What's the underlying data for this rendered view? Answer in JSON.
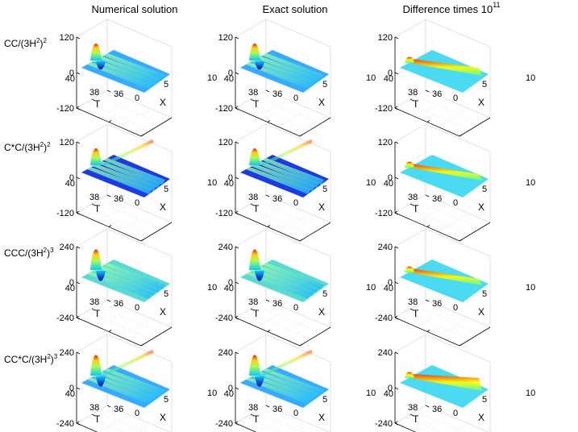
{
  "figure": {
    "column_titles": [
      "Numerical solution",
      "Exact solution",
      "Difference times 10"
    ],
    "difference_exponent": "11"
  },
  "chart_data": {
    "type": "surface-grid",
    "title": "",
    "axes": {
      "x": {
        "label": "X",
        "range": [
          0,
          10
        ],
        "ticks": [
          "0",
          "5",
          "10"
        ]
      },
      "t": {
        "label": "T",
        "range": [
          36,
          40
        ],
        "ticks": [
          "36",
          "38",
          "40"
        ]
      }
    },
    "rows": [
      {
        "label_base": "CC/(3H",
        "label_sup1": "2",
        "label_mid": ")",
        "label_sup2": "2",
        "zlim": [
          -120,
          120
        ],
        "z_ticks": [
          "120",
          "0",
          "-120"
        ],
        "baseline": "0"
      },
      {
        "label_base": "C*C/(3H",
        "label_sup1": "2",
        "label_mid": ")",
        "label_sup2": "2",
        "zlim": [
          -120,
          120
        ],
        "z_ticks": [
          "120",
          "0",
          "-120"
        ],
        "baseline": "-0.75"
      },
      {
        "label_base": "CCC/(3H",
        "label_sup1": "2",
        "label_mid": ")",
        "label_sup2": "3",
        "zlim": [
          -240,
          240
        ],
        "z_ticks": [
          "240",
          "0",
          "-240"
        ],
        "baseline": "0.15"
      },
      {
        "label_base": "CC*C/(3H",
        "label_sup1": "2",
        "label_mid": ")",
        "label_sup2": "3",
        "zlim": [
          -240,
          240
        ],
        "z_ticks": [
          "240",
          "0",
          "-240"
        ],
        "baseline": "-0.25"
      }
    ],
    "columns": [
      {
        "name": "Numerical solution",
        "features": "pulse-and-ridges"
      },
      {
        "name": "Exact solution",
        "features": "pulse-and-ridges"
      },
      {
        "name": "Difference times 10^11",
        "features": "diagonal-ridge"
      }
    ]
  },
  "colormap": [
    "#00008f",
    "#0000ff",
    "#0080ff",
    "#00ffff",
    "#80ff80",
    "#ffff00",
    "#ff8000",
    "#ff0000",
    "#800000"
  ]
}
